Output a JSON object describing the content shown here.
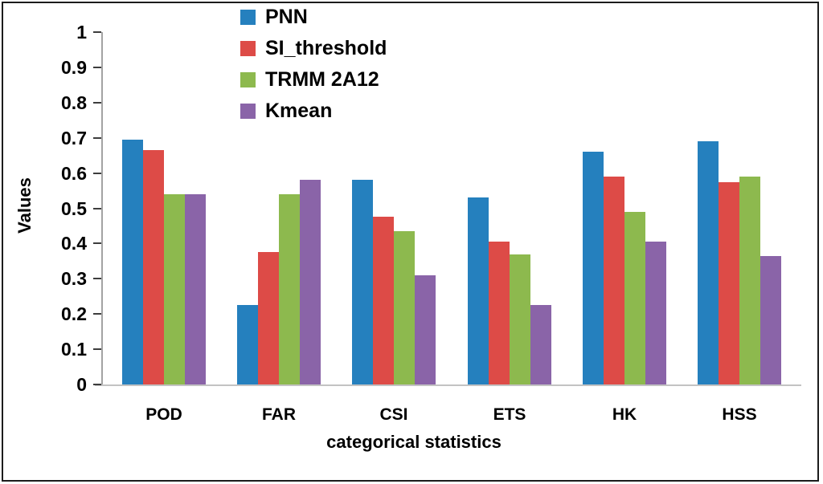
{
  "figure": {
    "background": "#ffffff",
    "frame_color": "#1c1c1c"
  },
  "chart_data": {
    "type": "bar",
    "title": "",
    "xlabel": "categorical statistics",
    "ylabel": "Values",
    "categories": [
      "POD",
      "FAR",
      "CSI",
      "ETS",
      "HK",
      "HSS"
    ],
    "series": [
      {
        "name": "PNN",
        "color": "#2580be",
        "values": [
          0.695,
          0.225,
          0.58,
          0.53,
          0.66,
          0.69
        ]
      },
      {
        "name": "SI_threshold",
        "color": "#dd4b47",
        "values": [
          0.665,
          0.375,
          0.475,
          0.405,
          0.59,
          0.575
        ]
      },
      {
        "name": "TRMM 2A12",
        "color": "#8db94e",
        "values": [
          0.54,
          0.54,
          0.435,
          0.37,
          0.49,
          0.59
        ]
      },
      {
        "name": "Kmean",
        "color": "#8a64a8",
        "values": [
          0.54,
          0.58,
          0.31,
          0.225,
          0.405,
          0.365
        ]
      }
    ],
    "ylim": [
      0,
      1
    ],
    "ytick_labels": [
      "1",
      "0.9",
      "0.8",
      "0.7",
      "0.6",
      "0.5",
      "0.4",
      "0.3",
      "0.2",
      "0.1",
      "0"
    ],
    "grid": false,
    "legend_position": "top-center",
    "axis_colors": {
      "y_line": "#a3a3a3",
      "x_line": "#c3c3c3",
      "tick": "#3d3d3d"
    }
  }
}
